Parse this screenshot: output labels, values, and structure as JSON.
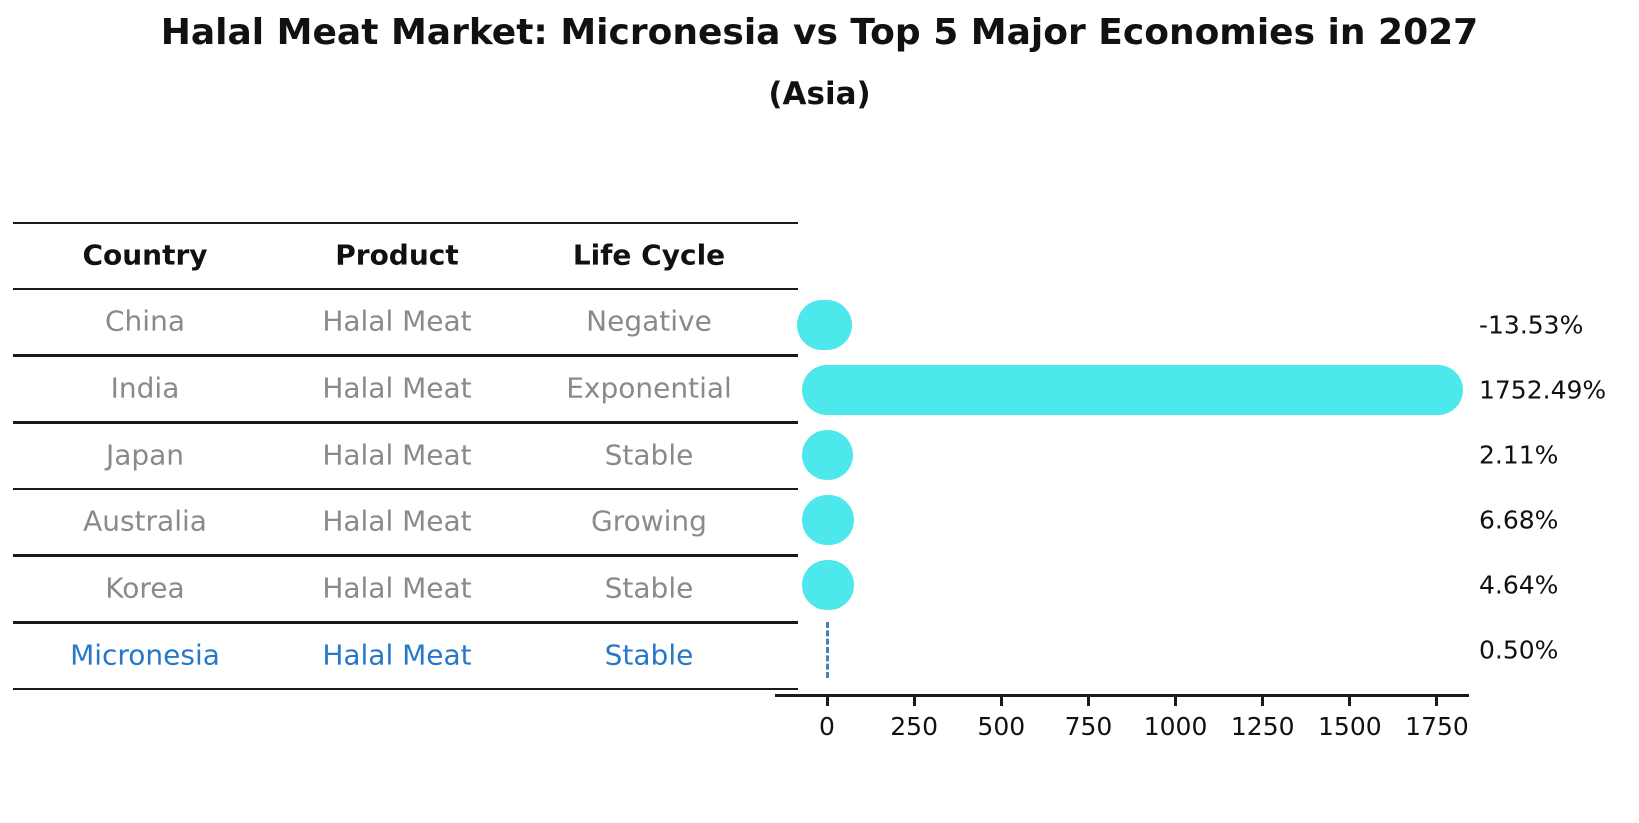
{
  "header": {
    "title": "Halal Meat Market: Micronesia vs Top 5 Major Economies in 2027",
    "subtitle": "(Asia)"
  },
  "colors": {
    "bar_turquoise": "#4DE8EC",
    "highlight_blue": "#2878C8",
    "dashed_line_blue": "#4A80B4",
    "table_text_gray": "#8A8A8A",
    "axis_black": "#1A1A1A"
  },
  "table": {
    "headers": [
      "Country",
      "Product",
      "Life Cycle"
    ],
    "rows": [
      {
        "country": "China",
        "product": "Halal Meat",
        "life_cycle": "Negative",
        "highlighted": false
      },
      {
        "country": "India",
        "product": "Halal Meat",
        "life_cycle": "Exponential",
        "highlighted": false
      },
      {
        "country": "Japan",
        "product": "Halal Meat",
        "life_cycle": "Stable",
        "highlighted": false
      },
      {
        "country": "Australia",
        "product": "Halal Meat",
        "life_cycle": "Growing",
        "highlighted": false
      },
      {
        "country": "Korea",
        "product": "Halal Meat",
        "life_cycle": "Stable",
        "highlighted": false
      },
      {
        "country": "Micronesia",
        "product": "Halal Meat",
        "life_cycle": "Stable",
        "highlighted": true
      }
    ]
  },
  "chart_data": {
    "type": "bar",
    "orientation": "horizontal",
    "title": "Halal Meat Market: Micronesia vs Top 5 Major Economies in 2027",
    "subtitle": "(Asia)",
    "categories": [
      "China",
      "India",
      "Japan",
      "Australia",
      "Korea",
      "Micronesia"
    ],
    "values": [
      -13.53,
      1752.49,
      2.11,
      6.68,
      4.64,
      0.5
    ],
    "value_labels": [
      "-13.53%",
      "1752.49%",
      "2.11%",
      "6.68%",
      "4.64%",
      "0.50%"
    ],
    "xlabel": "",
    "ylabel": "",
    "x_ticks": [
      0,
      250,
      500,
      750,
      1000,
      1250,
      1500,
      1750
    ],
    "xlim": [
      -150,
      1842
    ],
    "grid": false,
    "legend": "none",
    "highlight_index": 5,
    "highlight_note": "Micronesia row drawn as blue dashed vertical marker at zero instead of a bar"
  }
}
